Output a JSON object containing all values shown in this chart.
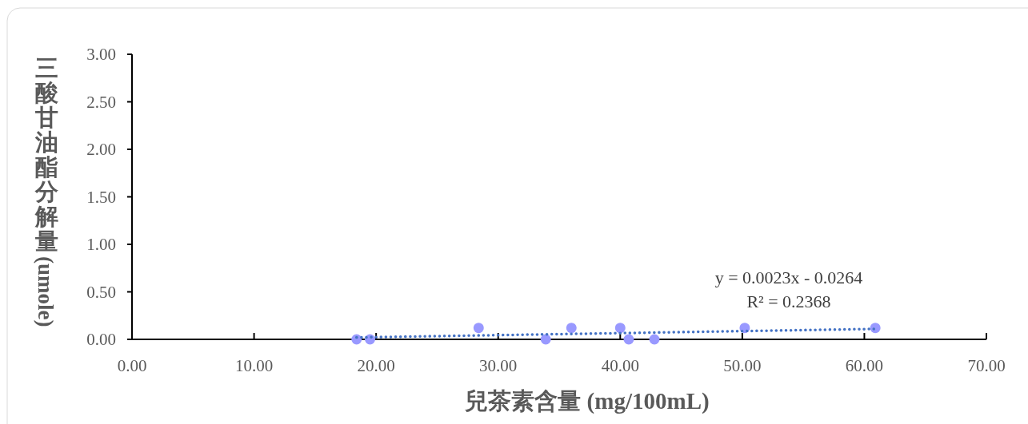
{
  "chart_data": {
    "type": "scatter",
    "xlabel": "兒茶素含量 (mg/100mL)",
    "ylabel": "三酸甘油酯分解量 (umole)",
    "xlim": [
      0,
      70
    ],
    "xticks": [
      {
        "value": 0,
        "label": "0.00"
      },
      {
        "value": 10,
        "label": "10.00"
      },
      {
        "value": 20,
        "label": "20.00"
      },
      {
        "value": 30,
        "label": "30.00"
      },
      {
        "value": 40,
        "label": "40.00"
      },
      {
        "value": 50,
        "label": "50.00"
      },
      {
        "value": 60,
        "label": "60.00"
      },
      {
        "value": 70,
        "label": "70.00"
      }
    ],
    "ylim": [
      0,
      3
    ],
    "yticks": [
      {
        "value": 0,
        "label": "0.00"
      },
      {
        "value": 0.5,
        "label": "0.50"
      },
      {
        "value": 1,
        "label": "1.00"
      },
      {
        "value": 1.5,
        "label": "1.50"
      },
      {
        "value": 2,
        "label": "2.00"
      },
      {
        "value": 2.5,
        "label": "2.50"
      },
      {
        "value": 3,
        "label": "3.00"
      }
    ],
    "grid": false,
    "marker": "circle",
    "series": [
      {
        "type": "scatter",
        "color": "#9999ff",
        "x": [
          18.4,
          19.5,
          28.4,
          33.9,
          36.0,
          40.0,
          40.7,
          42.8,
          50.2,
          60.9
        ],
        "values": [
          0,
          0,
          0.12,
          0,
          0.12,
          0.12,
          0,
          0,
          0.12,
          0.12
        ]
      },
      {
        "type": "line",
        "color": "#4472c4",
        "line_style": "dotted",
        "marker": "none",
        "x": [
          18.4,
          60.9
        ],
        "values": [
          0.02,
          0.11
        ]
      }
    ],
    "annotations": [
      "y = 0.0023x - 0.0264",
      "R² = 0.2368"
    ]
  }
}
